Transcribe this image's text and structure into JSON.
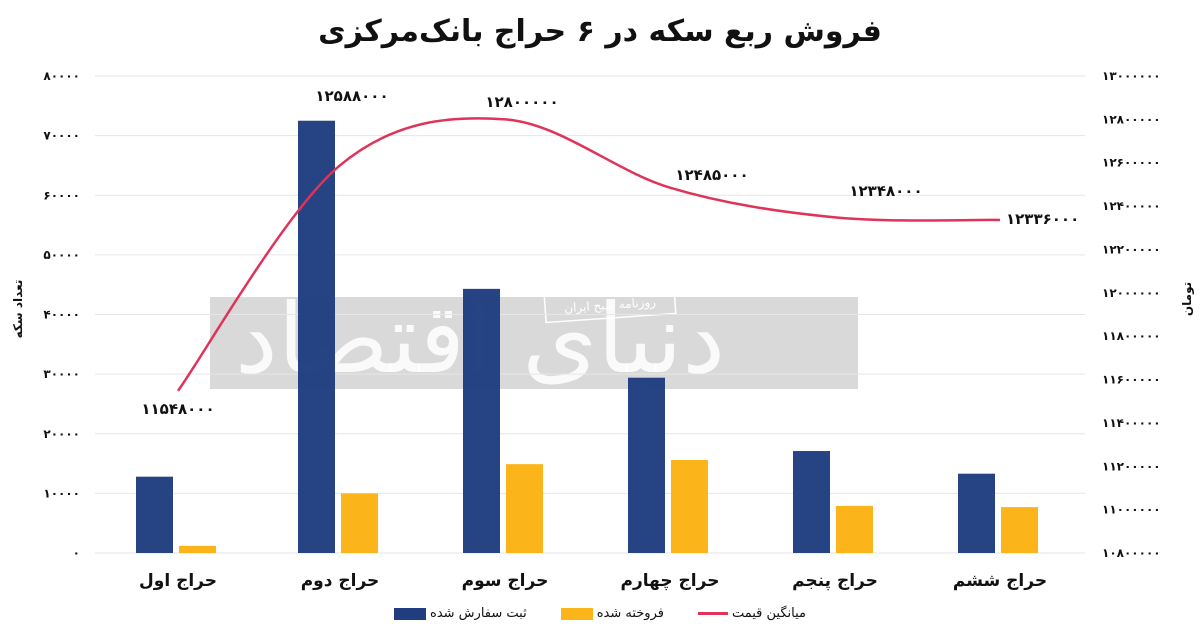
{
  "title": "فروش ربع سکه در ۶ حراج بانک‌مرکزی",
  "axes": {
    "left_title": "تعداد سکه",
    "right_title": "تومان",
    "left_ticks": [
      "۰",
      "۱۰۰۰۰",
      "۲۰۰۰۰",
      "۳۰۰۰۰",
      "۴۰۰۰۰",
      "۵۰۰۰۰",
      "۶۰۰۰۰",
      "۷۰۰۰۰",
      "۸۰۰۰۰"
    ],
    "right_ticks": [
      "۱۰۸۰۰۰۰۰",
      "۱۱۰۰۰۰۰۰",
      "۱۱۲۰۰۰۰۰",
      "۱۱۴۰۰۰۰۰",
      "۱۱۶۰۰۰۰۰",
      "۱۱۸۰۰۰۰۰",
      "۱۲۰۰۰۰۰۰",
      "۱۲۲۰۰۰۰۰",
      "۱۲۴۰۰۰۰۰",
      "۱۲۶۰۰۰۰۰",
      "۱۲۸۰۰۰۰۰",
      "۱۳۰۰۰۰۰۰"
    ]
  },
  "categories_fa": [
    "حراج اول",
    "حراج دوم",
    "حراج سوم",
    "حراج چهارم",
    "حراج پنجم",
    "حراج ششم"
  ],
  "price_labels_fa": [
    "۱۱۵۴۸۰۰۰",
    "۱۲۵۸۸۰۰۰",
    "۱۲۸۰۰۰۰۰",
    "۱۲۴۸۵۰۰۰",
    "۱۲۳۴۸۰۰۰",
    "۱۲۳۳۶۰۰۰"
  ],
  "legend": {
    "ordered": "ثبت سفارش شده",
    "sold": "فروخته شده",
    "avg_price": "میانگین قیمت"
  },
  "watermark": {
    "brand": "دنیای اقتصاد",
    "badge": "روزنامه صبح ایران"
  },
  "colors": {
    "ordered": "#1f3d7f",
    "sold": "#fbb51a",
    "avg_price": "#e0335a",
    "grid": "#e6e6e6"
  },
  "chart_data": {
    "type": "bar",
    "title": "فروش ربع سکه در ۶ حراج بانک‌مرکزی",
    "categories": [
      "حراج اول",
      "حراج دوم",
      "حراج سوم",
      "حراج چهارم",
      "حراج پنجم",
      "حراج ششم"
    ],
    "xlabel": "",
    "ylabel": "تعداد سکه",
    "ylabel_right": "تومان",
    "ylim": [
      0,
      80000
    ],
    "ylim_right": [
      10800000,
      13000000
    ],
    "grid": true,
    "legend_position": "bottom",
    "series": [
      {
        "name": "ثبت سفارش شده",
        "type": "bar",
        "axis": "left",
        "values": [
          12800,
          72500,
          44300,
          29400,
          17100,
          13300
        ]
      },
      {
        "name": "فروخته شده",
        "type": "bar",
        "axis": "left",
        "values": [
          1200,
          10000,
          14900,
          15600,
          7900,
          7700
        ]
      },
      {
        "name": "میانگین قیمت",
        "type": "line",
        "axis": "right",
        "smooth": true,
        "values": [
          11548000,
          12588000,
          12800000,
          12485000,
          12348000,
          12336000
        ]
      }
    ],
    "annotations": [
      "11548000",
      "12588000",
      "12800000",
      "12485000",
      "12348000",
      "12336000"
    ]
  }
}
